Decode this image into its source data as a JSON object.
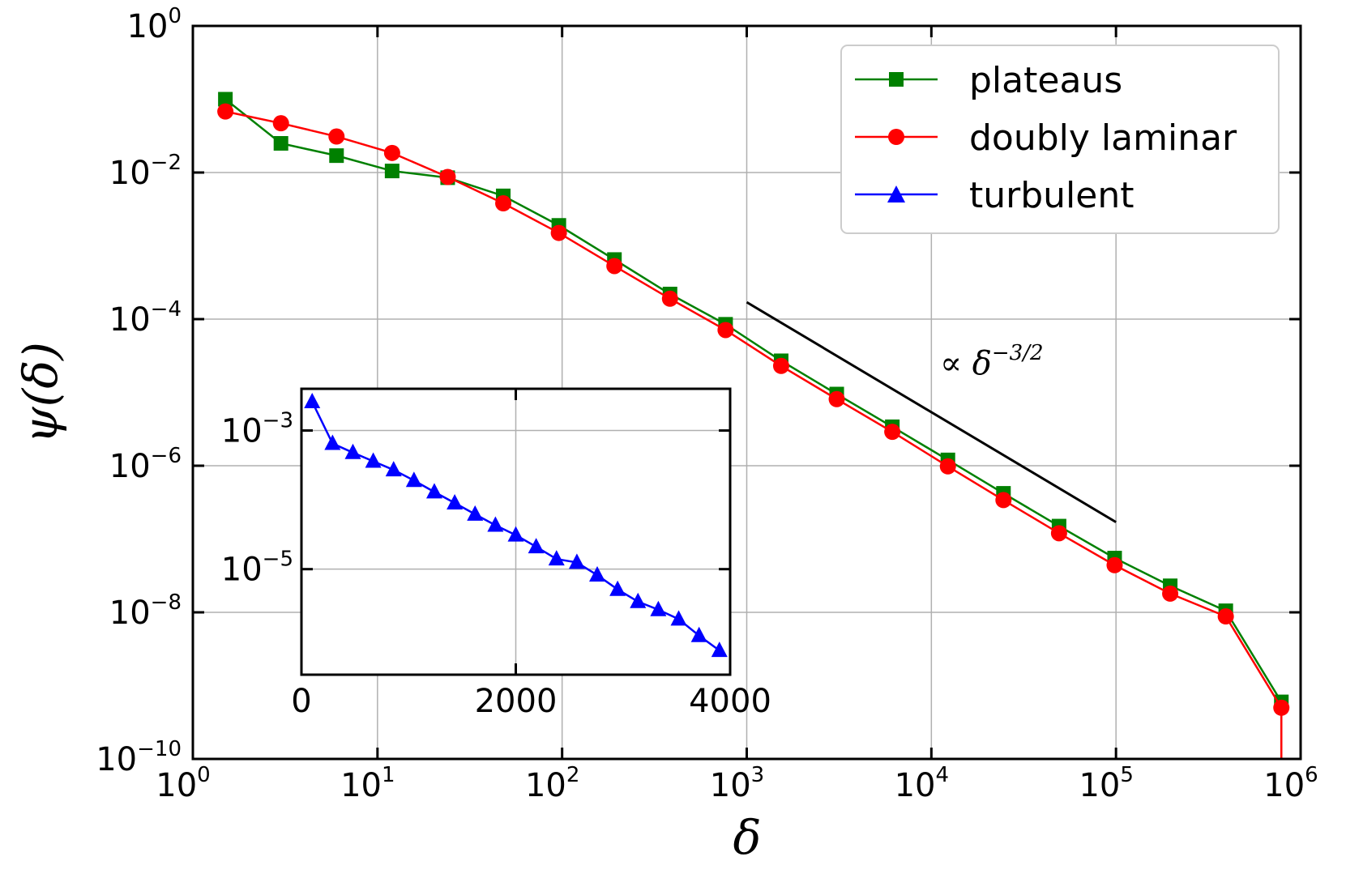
{
  "chart_data": [
    {
      "type": "line",
      "xscale": "log",
      "yscale": "log",
      "xlim": [
        1,
        1000000
      ],
      "ylim": [
        1e-10,
        1
      ],
      "xlabel": "δ",
      "ylabel": "ψ(δ)",
      "grid": true,
      "legend_position": "top-right",
      "x_tick_base": "10",
      "x_tick_exponents": [
        "0",
        "1",
        "2",
        "3",
        "4",
        "5",
        "6"
      ],
      "y_tick_base": "10",
      "y_tick_exponents": [
        "0",
        "−2",
        "−4",
        "−6",
        "−8",
        "−10"
      ],
      "series": [
        {
          "name": "plateaus",
          "color": "#008000",
          "marker": "square",
          "x": [
            1.5,
            3,
            6,
            12,
            24,
            48,
            96,
            192,
            384,
            768,
            1536,
            3072,
            6144,
            12288,
            24576,
            49152,
            98304,
            196608,
            393216,
            786432
          ],
          "y": [
            0.1,
            0.025,
            0.017,
            0.0105,
            0.0085,
            0.0048,
            0.0019,
            0.00065,
            0.00022,
            8.5e-05,
            2.7e-05,
            9.5e-06,
            3.4e-06,
            1.2e-06,
            4.2e-07,
            1.5e-07,
            5.5e-08,
            2.3e-08,
            1.05e-08,
            6e-10
          ]
        },
        {
          "name": "doubly laminar",
          "color": "#ff0000",
          "marker": "circle",
          "x": [
            1.5,
            3,
            6,
            12,
            24,
            48,
            96,
            192,
            384,
            768,
            1536,
            3072,
            6144,
            12288,
            24576,
            49152,
            98304,
            196608,
            393216,
            786432
          ],
          "y": [
            0.068,
            0.047,
            0.031,
            0.0185,
            0.0087,
            0.0038,
            0.0015,
            0.00053,
            0.00019,
            7.1e-05,
            2.3e-05,
            8.1e-06,
            2.9e-06,
            9.8e-07,
            3.4e-07,
            1.2e-07,
            4.4e-08,
            1.8e-08,
            8.8e-09,
            5e-10
          ]
        }
      ],
      "annotations": [
        {
          "text_prefix": "∝ δ",
          "text_exp": "−3/2",
          "kind": "reference-slope-line",
          "x_range": [
            1000,
            100000
          ],
          "y_range": [
            0.00017,
            1.7e-07
          ]
        }
      ]
    },
    {
      "type": "line",
      "inset": true,
      "xscale": "linear",
      "yscale": "log",
      "xlim": [
        0,
        4000
      ],
      "ylim": [
        3e-07,
        0.004
      ],
      "x_ticks": [
        "0",
        "2000",
        "4000"
      ],
      "y_tick_base": "10",
      "y_tick_exponents": [
        "−3",
        "−5"
      ],
      "grid": true,
      "series": [
        {
          "name": "turbulent",
          "color": "#0000ff",
          "marker": "triangle",
          "x": [
            100,
            290,
            480,
            670,
            860,
            1050,
            1240,
            1430,
            1620,
            1810,
            2000,
            2190,
            2380,
            2570,
            2760,
            2950,
            3140,
            3330,
            3520,
            3710,
            3900
          ],
          "y": [
            0.0026,
            0.00065,
            0.00048,
            0.00036,
            0.00027,
            0.00019,
            0.00013,
            9e-05,
            6.2e-05,
            4.3e-05,
            3.1e-05,
            2.1e-05,
            1.4e-05,
            1.25e-05,
            8.2e-06,
            5.1e-06,
            3.4e-06,
            2.6e-06,
            1.9e-06,
            1.1e-06,
            6.7e-07
          ]
        }
      ]
    }
  ]
}
